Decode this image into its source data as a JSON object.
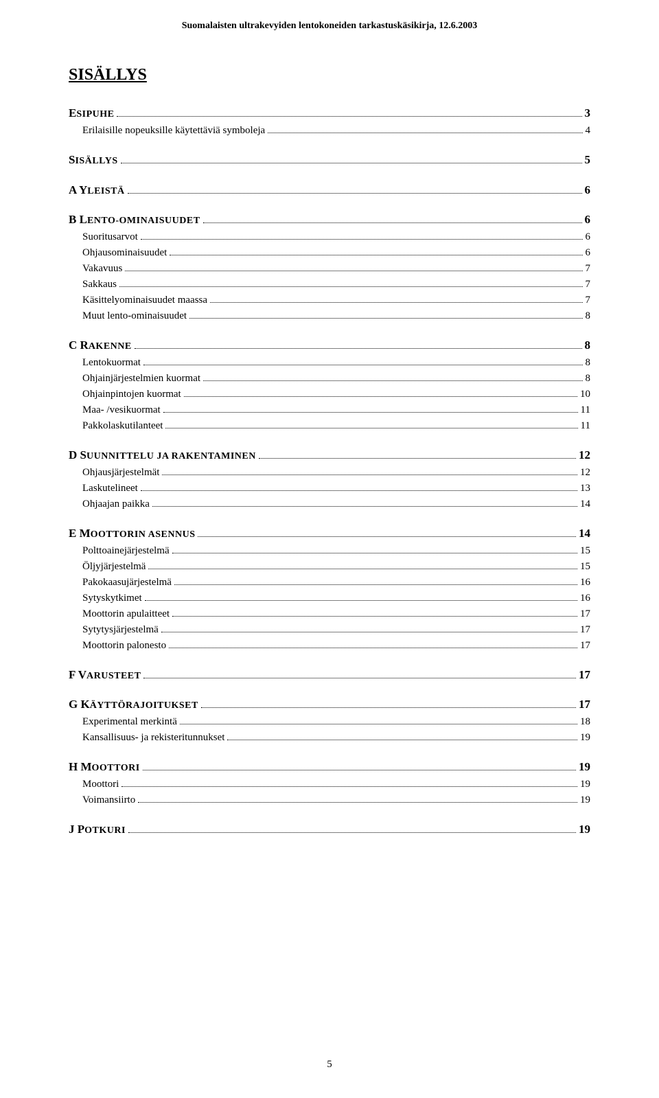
{
  "header": "Suomalaisten ultrakevyiden lentokoneiden tarkastuskäsikirja, 12.6.2003",
  "title": "SISÄLLYS",
  "page_number": "5",
  "toc": [
    {
      "level": 1,
      "prefix": "E",
      "rest": "SIPUHE",
      "page": "3",
      "children": [
        {
          "label": "Erilaisille nopeuksille käytettäviä symboleja",
          "page": "4"
        }
      ]
    },
    {
      "level": 1,
      "prefix": "S",
      "rest": "ISÄLLYS",
      "page": "5",
      "children": []
    },
    {
      "level": 1,
      "prefix": "A Y",
      "rest": "LEISTÄ",
      "page": "6",
      "children": []
    },
    {
      "level": 1,
      "prefix": "B L",
      "rest": "ENTO-OMINAISUUDET",
      "page": "6",
      "children": [
        {
          "label": "Suoritusarvot",
          "page": "6"
        },
        {
          "label": "Ohjausominaisuudet",
          "page": "6"
        },
        {
          "label": "Vakavuus",
          "page": "7"
        },
        {
          "label": "Sakkaus",
          "page": "7"
        },
        {
          "label": "Käsittelyominaisuudet maassa",
          "page": "7"
        },
        {
          "label": "Muut lento-ominaisuudet",
          "page": "8"
        }
      ]
    },
    {
      "level": 1,
      "prefix": "C R",
      "rest": "AKENNE",
      "page": "8",
      "children": [
        {
          "label": "Lentokuormat",
          "page": "8"
        },
        {
          "label": "Ohjainjärjestelmien kuormat",
          "page": "8"
        },
        {
          "label": "Ohjainpintojen kuormat",
          "page": "10"
        },
        {
          "label": "Maa- /vesikuormat",
          "page": "11"
        },
        {
          "label": "Pakkolaskutilanteet",
          "page": "11"
        }
      ]
    },
    {
      "level": 1,
      "prefix": "D S",
      "rest": "UUNNITTELU JA RAKENTAMINEN",
      "page": "12",
      "children": [
        {
          "label": "Ohjausjärjestelmät",
          "page": "12"
        },
        {
          "label": "Laskutelineet",
          "page": "13"
        },
        {
          "label": "Ohjaajan paikka",
          "page": "14"
        }
      ]
    },
    {
      "level": 1,
      "prefix": "E M",
      "rest": "OOTTORIN ASENNUS",
      "page": "14",
      "children": [
        {
          "label": "Polttoainejärjestelmä",
          "page": "15"
        },
        {
          "label": "Öljyjärjestelmä",
          "page": "15"
        },
        {
          "label": "Pakokaasujärjestelmä",
          "page": "16"
        },
        {
          "label": "Sytyskytkimet",
          "page": "16"
        },
        {
          "label": "Moottorin apulaitteet",
          "page": "17"
        },
        {
          "label": "Sytytysjärjestelmä",
          "page": "17"
        },
        {
          "label": "Moottorin palonesto",
          "page": "17"
        }
      ]
    },
    {
      "level": 1,
      "prefix": "F V",
      "rest": "ARUSTEET",
      "page": "17",
      "children": []
    },
    {
      "level": 1,
      "prefix": "G K",
      "rest": "ÄYTTÖRAJOITUKSET",
      "page": "17",
      "children": [
        {
          "label": "Experimental merkintä",
          "page": "18"
        },
        {
          "label": "Kansallisuus- ja rekisteritunnukset",
          "page": "19"
        }
      ]
    },
    {
      "level": 1,
      "prefix": "H M",
      "rest": "OOTTORI",
      "page": "19",
      "children": [
        {
          "label": "Moottori",
          "page": "19"
        },
        {
          "label": "Voimansiirto",
          "page": "19"
        }
      ]
    },
    {
      "level": 1,
      "prefix": "J P",
      "rest": "OTKURI",
      "page": "19",
      "children": []
    }
  ]
}
